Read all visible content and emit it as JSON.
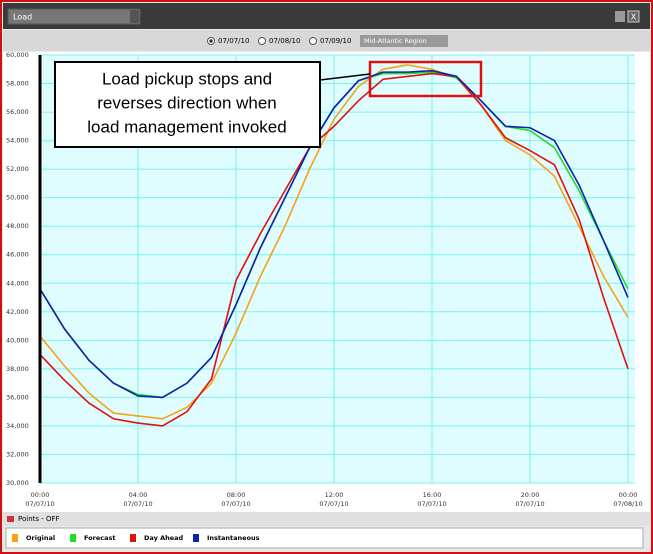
{
  "ui": {
    "dropdown": "Load",
    "close": "X",
    "dates": [
      "07/07/10",
      "07/08/10",
      "07/09/10"
    ],
    "region": "Mid-Atlantic Region",
    "points": "Points - OFF"
  },
  "chart_data": {
    "type": "line",
    "annotation": [
      "Load pickup stops and",
      "reverses direction when",
      "load management invoked"
    ],
    "x": [
      0,
      1,
      2,
      3,
      4,
      5,
      6,
      7,
      8,
      9,
      10,
      11,
      12,
      13,
      14,
      15,
      16,
      17,
      18,
      19,
      20,
      21,
      22,
      23,
      24
    ],
    "xlim": [
      0,
      24
    ],
    "xticks": [
      {
        "value": 0,
        "label": "00:00"
      },
      {
        "value": 4,
        "label": "04:00"
      },
      {
        "value": 8,
        "label": "08:00"
      },
      {
        "value": 12,
        "label": "12:00"
      },
      {
        "value": 16,
        "label": "16:00"
      },
      {
        "value": 20,
        "label": "20:00"
      },
      {
        "value": 24,
        "label": "00:00"
      }
    ],
    "xtick_dates": [
      "07/07/10",
      "07/07/10",
      "07/07/10",
      "07/07/10",
      "07/07/10",
      "07/07/10",
      "07/08/10"
    ],
    "ylim": [
      30000,
      60000
    ],
    "yticks": [
      {
        "value": 30000,
        "label": "30,000"
      },
      {
        "value": 32000,
        "label": "32,000"
      },
      {
        "value": 34000,
        "label": "34,000"
      },
      {
        "value": 36000,
        "label": "36,000"
      },
      {
        "value": 38000,
        "label": "38,000"
      },
      {
        "value": 40000,
        "label": "40,000"
      },
      {
        "value": 42000,
        "label": "42,000"
      },
      {
        "value": 44000,
        "label": "44,000"
      },
      {
        "value": 46000,
        "label": "46,000"
      },
      {
        "value": 48000,
        "label": "48,000"
      },
      {
        "value": 50000,
        "label": "50,000"
      },
      {
        "value": 52000,
        "label": "52,000"
      },
      {
        "value": 54000,
        "label": "54,000"
      },
      {
        "value": 56000,
        "label": "56,000"
      },
      {
        "value": 58000,
        "label": "58,000"
      },
      {
        "value": 60000,
        "label": "60,000"
      }
    ],
    "grid": true,
    "series": [
      {
        "name": "Original",
        "color": "#f5a21b",
        "values": [
          40300,
          38200,
          36300,
          34900,
          34700,
          34500,
          35300,
          37000,
          40500,
          44500,
          48000,
          52000,
          55500,
          57800,
          59000,
          59300,
          59000,
          58400,
          56500,
          54000,
          53000,
          51500,
          48000,
          44500,
          41600
        ]
      },
      {
        "name": "Forecast",
        "color": "#22dd22",
        "values": [
          43600,
          40800,
          38600,
          37000,
          36200,
          36000,
          37000,
          38800,
          42500,
          46500,
          50000,
          53500,
          56300,
          58200,
          58700,
          58700,
          58800,
          58400,
          56800,
          55000,
          54700,
          53500,
          50500,
          47000,
          43600
        ]
      },
      {
        "name": "Day Ahead",
        "color": "#e01010",
        "values": [
          39000,
          37200,
          35600,
          34500,
          34200,
          34000,
          35000,
          37300,
          44200,
          47500,
          50500,
          53500,
          55000,
          56800,
          58300,
          58500,
          58700,
          58500,
          56500,
          54200,
          53300,
          52300,
          48500,
          43000,
          38000
        ]
      },
      {
        "name": "Instantaneous",
        "color": "#1020b0",
        "values": [
          43600,
          40800,
          38600,
          37000,
          36100,
          36000,
          37000,
          38800,
          42500,
          46500,
          50000,
          53500,
          56300,
          58200,
          58800,
          58800,
          58900,
          58500,
          56800,
          55000,
          54900,
          54000,
          50900,
          47000,
          43000
        ]
      }
    ]
  }
}
